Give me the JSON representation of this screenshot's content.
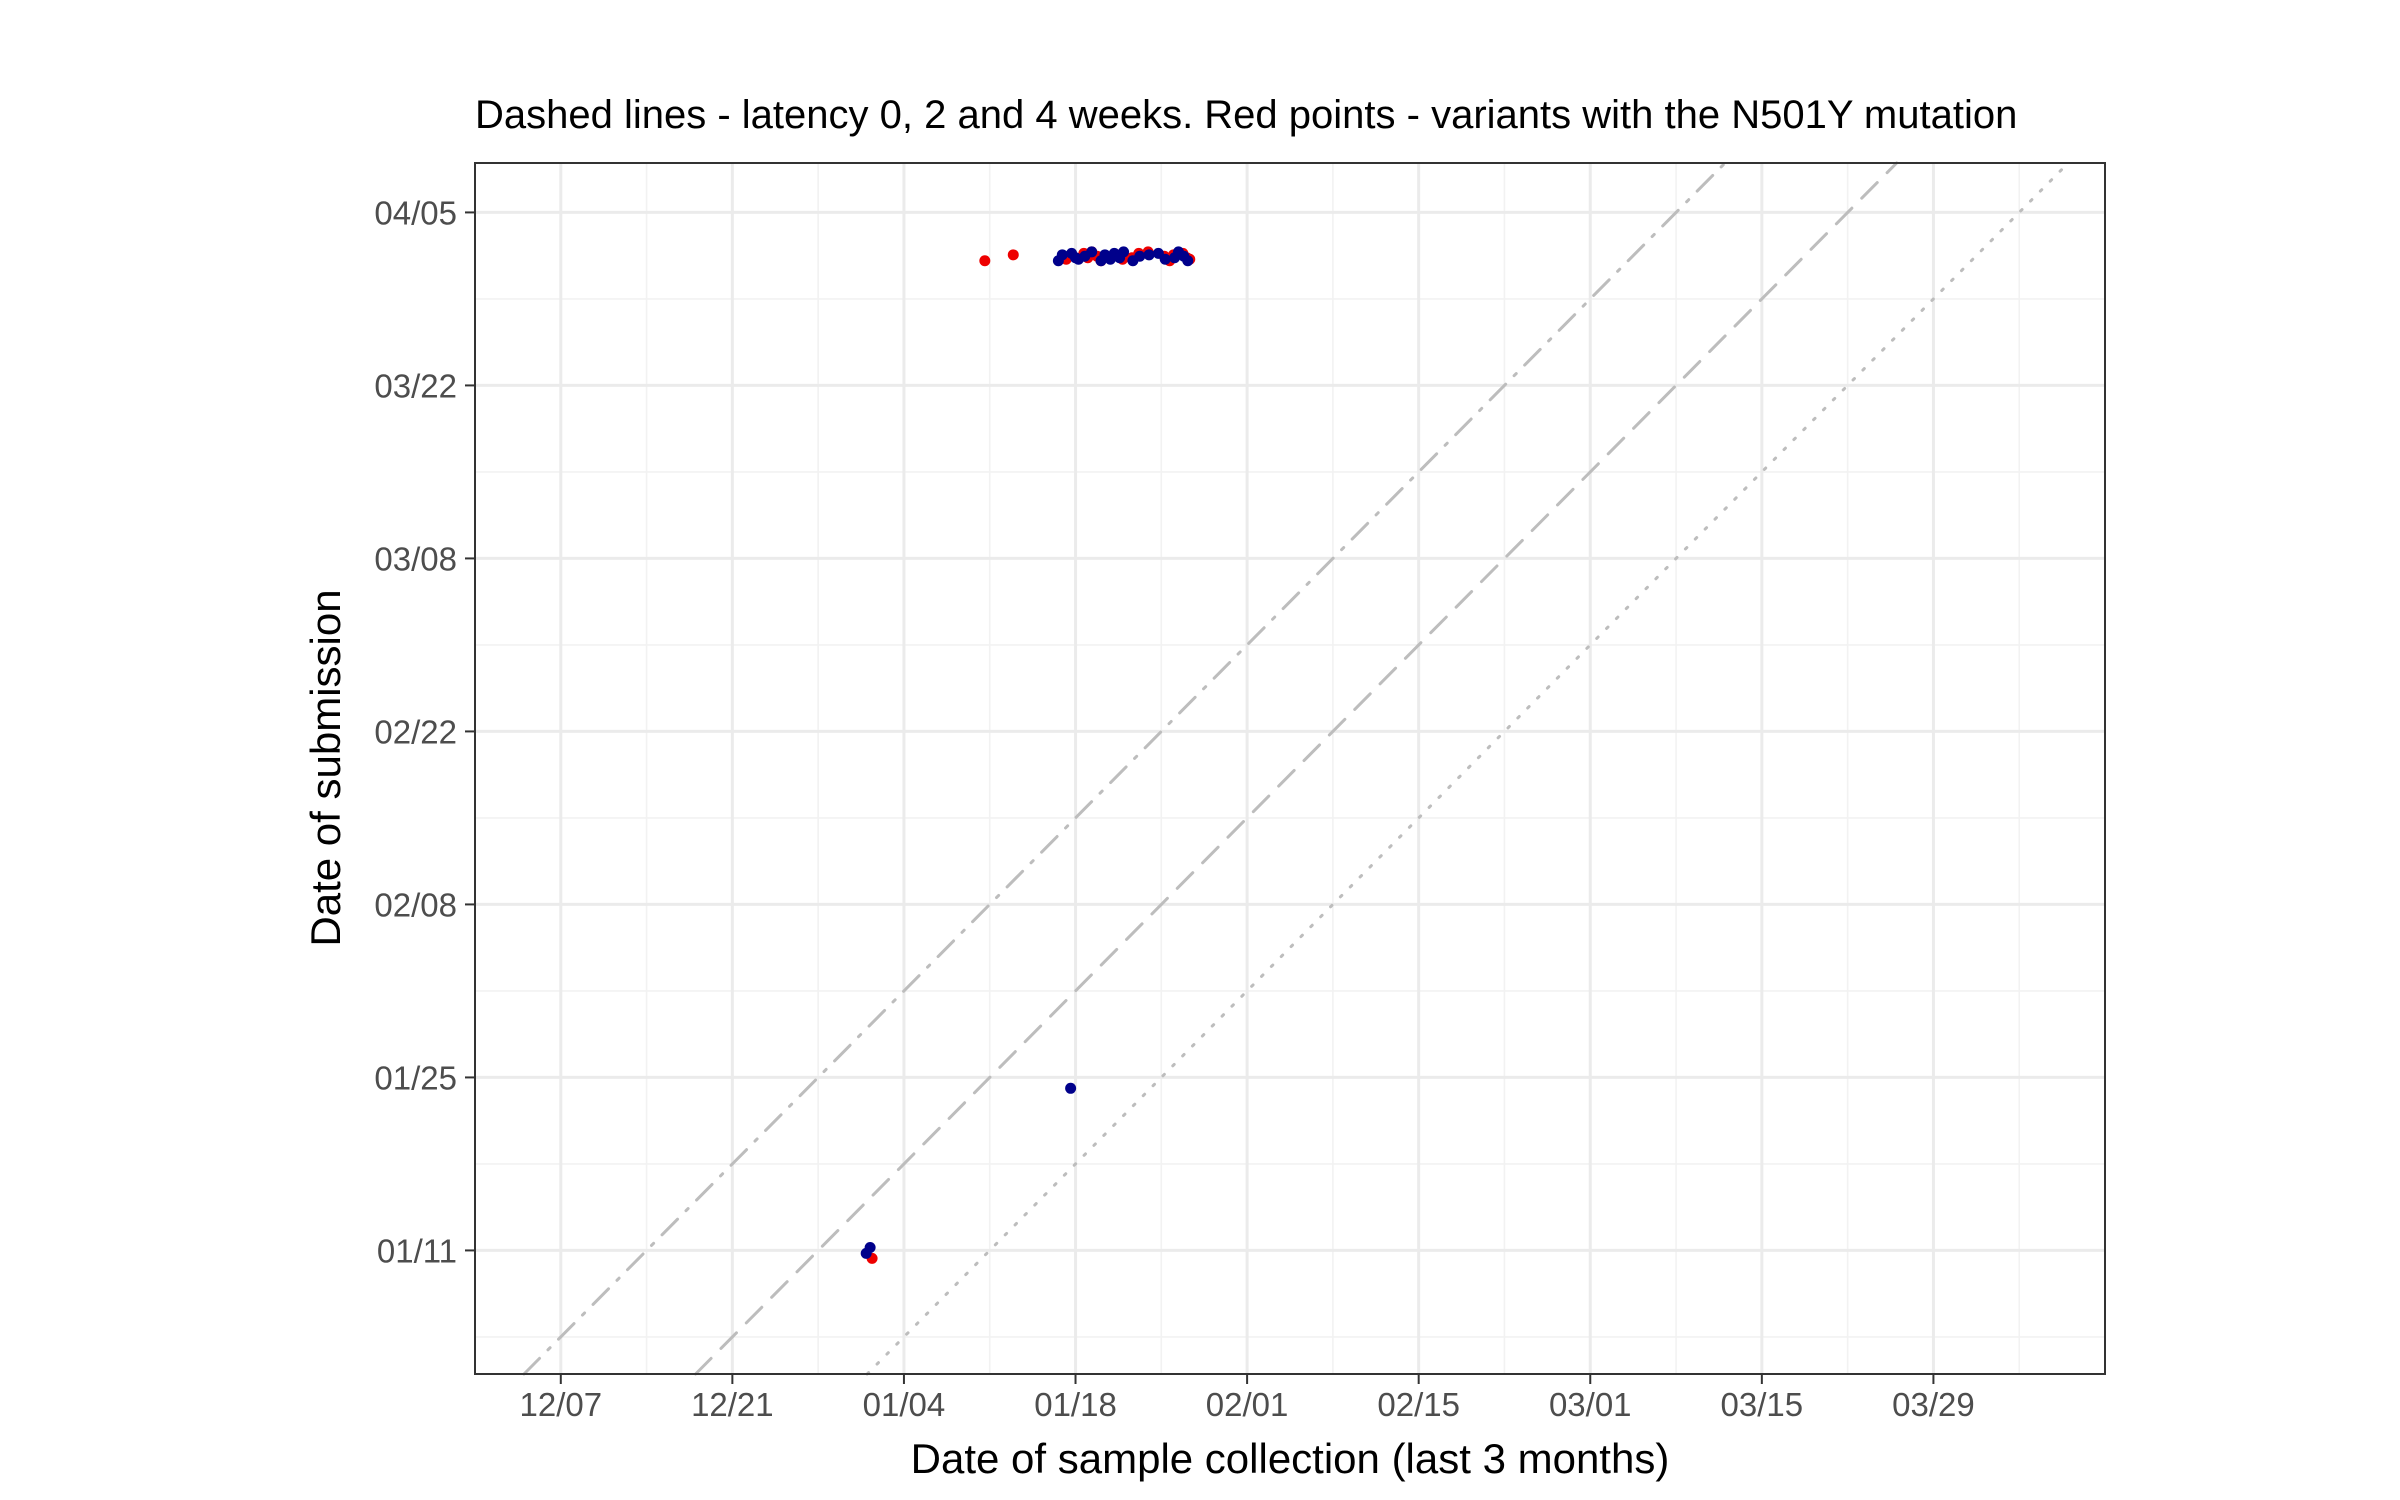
{
  "chart_data": {
    "type": "scatter",
    "title": "Dashed lines - latency 0, 2 and 4 weeks. Red points - variants with the N501Y mutation",
    "xlabel": "Date of sample collection (last 3 months)",
    "ylabel": "Date of submission",
    "x_ticks": [
      {
        "label": "12/07",
        "date": "2020-12-07"
      },
      {
        "label": "12/21",
        "date": "2020-12-21"
      },
      {
        "label": "01/04",
        "date": "2021-01-04"
      },
      {
        "label": "01/18",
        "date": "2021-01-18"
      },
      {
        "label": "02/01",
        "date": "2021-02-01"
      },
      {
        "label": "02/15",
        "date": "2021-02-15"
      },
      {
        "label": "03/01",
        "date": "2021-03-01"
      },
      {
        "label": "03/15",
        "date": "2021-03-15"
      },
      {
        "label": "03/29",
        "date": "2021-03-29"
      }
    ],
    "y_ticks": [
      {
        "label": "01/11",
        "date": "2021-01-11"
      },
      {
        "label": "01/25",
        "date": "2021-01-25"
      },
      {
        "label": "02/08",
        "date": "2021-02-08"
      },
      {
        "label": "02/22",
        "date": "2021-02-22"
      },
      {
        "label": "03/08",
        "date": "2021-03-08"
      },
      {
        "label": "03/22",
        "date": "2021-03-22"
      },
      {
        "label": "04/05",
        "date": "2021-04-05"
      }
    ],
    "xlim": [
      "2020-11-30",
      "2021-04-12"
    ],
    "ylim": [
      "2021-01-01",
      "2021-04-09"
    ],
    "grid": true,
    "reference_lines": [
      {
        "latency_weeks": 0,
        "style": "dotted",
        "color": "#bdbdbd"
      },
      {
        "latency_weeks": 2,
        "style": "dashed",
        "color": "#bdbdbd"
      },
      {
        "latency_weeks": 4,
        "style": "dash-dot",
        "color": "#bdbdbd"
      }
    ],
    "colors": {
      "N501Y": "#ee0000",
      "other": "#00008b"
    },
    "series": [
      {
        "color": "#ee0000",
        "points": [
          {
            "x": "2021-01-11",
            "y": "2021-04-00"
          },
          {
            "x": "2021-01-13",
            "y": "2021-04-00"
          },
          {
            "x": "2021-01-17",
            "y": "2021-04-00"
          },
          {
            "x": "2021-01-19",
            "y": "2021-04-00"
          },
          {
            "x": "2021-01-19",
            "y": "2021-04-00"
          },
          {
            "x": "2021-01-19",
            "y": "2021-04-00"
          },
          {
            "x": "2021-01-20",
            "y": "2021-04-00"
          },
          {
            "x": "2021-01-20",
            "y": "2021-04-00"
          },
          {
            "x": "2021-01-21",
            "y": "2021-04-00"
          },
          {
            "x": "2021-01-22",
            "y": "2021-04-00"
          },
          {
            "x": "2021-01-23",
            "y": "2021-04-00"
          },
          {
            "x": "2021-01-23",
            "y": "2021-04-00"
          },
          {
            "x": "2021-01-24",
            "y": "2021-04-00"
          },
          {
            "x": "2021-01-25",
            "y": "2021-04-00"
          },
          {
            "x": "2021-01-26",
            "y": "2021-04-00"
          },
          {
            "x": "2021-01-26",
            "y": "2021-04-00"
          },
          {
            "x": "2021-01-27",
            "y": "2021-04-00"
          },
          {
            "x": "2021-01-27",
            "y": "2021-04-00"
          },
          {
            "x": "2021-01-27",
            "y": "2021-04-00"
          },
          {
            "x": "2021-01-01",
            "y": "2021-01-10"
          }
        ]
      },
      {
        "color": "#00008b",
        "points": [
          {
            "x": "2021-01-17",
            "y": "2021-04-00"
          },
          {
            "x": "2021-01-17",
            "y": "2021-04-00"
          },
          {
            "x": "2021-01-18",
            "y": "2021-04-00"
          },
          {
            "x": "2021-01-18",
            "y": "2021-04-00"
          },
          {
            "x": "2021-01-18",
            "y": "2021-04-00"
          },
          {
            "x": "2021-01-19",
            "y": "2021-04-00"
          },
          {
            "x": "2021-01-19",
            "y": "2021-04-00"
          },
          {
            "x": "2021-01-20",
            "y": "2021-04-00"
          },
          {
            "x": "2021-01-20",
            "y": "2021-04-00"
          },
          {
            "x": "2021-01-21",
            "y": "2021-04-00"
          },
          {
            "x": "2021-01-21",
            "y": "2021-04-00"
          },
          {
            "x": "2021-01-22",
            "y": "2021-04-00"
          },
          {
            "x": "2021-01-22",
            "y": "2021-04-00"
          },
          {
            "x": "2021-01-23",
            "y": "2021-04-00"
          },
          {
            "x": "2021-01-23",
            "y": "2021-04-00"
          },
          {
            "x": "2021-01-24",
            "y": "2021-04-00"
          },
          {
            "x": "2021-01-25",
            "y": "2021-04-00"
          },
          {
            "x": "2021-01-25",
            "y": "2021-04-00"
          },
          {
            "x": "2021-01-26",
            "y": "2021-04-00"
          },
          {
            "x": "2021-01-26",
            "y": "2021-04-00"
          },
          {
            "x": "2021-01-27",
            "y": "2021-04-00"
          },
          {
            "x": "2021-01-27",
            "y": "2021-04-00"
          },
          {
            "x": "2021-01-18",
            "y": "2021-01-24"
          },
          {
            "x": "2021-01-01",
            "y": "2021-01-11"
          },
          {
            "x": "2021-01-01",
            "y": "2021-01-11"
          }
        ]
      }
    ]
  }
}
